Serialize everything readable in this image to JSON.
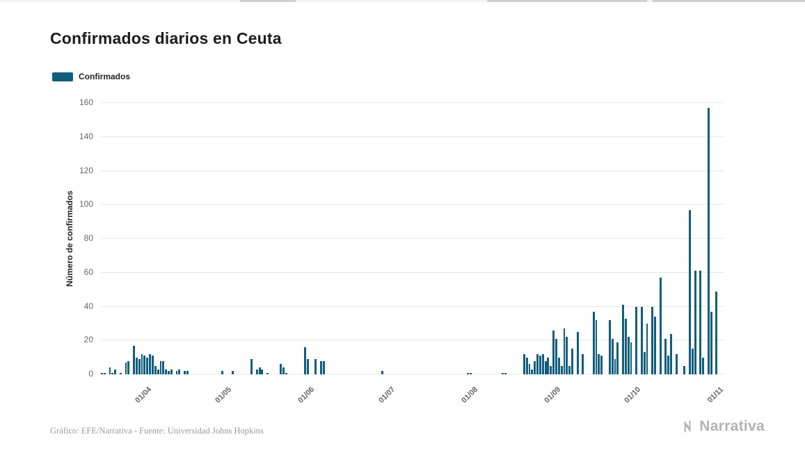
{
  "page": {
    "title": "Confirmados diarios en Ceuta",
    "credit": "Gráfico: EFE/Narrativa - Fuente: Universidad Johns Hopkins",
    "brand": "Narrativa"
  },
  "legend": {
    "label": "Confirmados",
    "color": "#0f5d7d"
  },
  "chart_data": {
    "type": "bar",
    "title": "Confirmados diarios en Ceuta",
    "series_name": "Confirmados",
    "xlabel": "",
    "ylabel": "Número de confirmados",
    "ylim": [
      0,
      160
    ],
    "y_ticks": [
      0,
      20,
      40,
      60,
      80,
      100,
      120,
      140,
      160
    ],
    "grid": true,
    "legend_position": "top-left",
    "bar_color": "#0f5d7d",
    "x_unit": "day",
    "start_date": "14/03",
    "x_ticks": [
      {
        "label": "01/04",
        "index": 18
      },
      {
        "label": "01/05",
        "index": 48
      },
      {
        "label": "01/06",
        "index": 79
      },
      {
        "label": "01/07",
        "index": 109
      },
      {
        "label": "01/08",
        "index": 140
      },
      {
        "label": "01/09",
        "index": 171
      },
      {
        "label": "01/10",
        "index": 201
      },
      {
        "label": "01/11",
        "index": 232
      }
    ],
    "values": [
      1,
      1,
      0,
      4,
      1,
      3,
      0,
      1,
      0,
      7,
      8,
      0,
      17,
      10,
      9,
      12,
      11,
      10,
      12,
      11,
      5,
      3,
      8,
      8,
      3,
      2,
      3,
      0,
      2,
      3,
      0,
      2,
      2,
      0,
      0,
      0,
      0,
      0,
      0,
      0,
      0,
      0,
      0,
      0,
      0,
      2,
      0,
      0,
      0,
      2,
      0,
      0,
      0,
      0,
      0,
      0,
      9,
      0,
      3,
      4,
      3,
      0,
      1,
      0,
      0,
      0,
      0,
      6,
      4,
      1,
      0,
      0,
      0,
      0,
      0,
      0,
      16,
      9,
      0,
      0,
      9,
      0,
      8,
      8,
      0,
      0,
      0,
      0,
      0,
      0,
      0,
      0,
      0,
      0,
      0,
      0,
      0,
      0,
      0,
      0,
      0,
      0,
      0,
      0,
      0,
      2,
      0,
      0,
      0,
      0,
      0,
      0,
      0,
      0,
      0,
      0,
      0,
      0,
      0,
      0,
      0,
      0,
      0,
      0,
      0,
      0,
      0,
      0,
      0,
      0,
      0,
      0,
      0,
      0,
      0,
      0,
      0,
      1,
      1,
      0,
      0,
      0,
      0,
      0,
      0,
      0,
      0,
      0,
      0,
      0,
      1,
      1,
      0,
      0,
      0,
      0,
      0,
      0,
      12,
      10,
      6,
      3,
      8,
      12,
      11,
      12,
      8,
      10,
      5,
      26,
      21,
      10,
      5,
      27,
      22,
      5,
      15,
      0,
      25,
      0,
      12,
      0,
      0,
      0,
      37,
      32,
      12,
      11,
      0,
      0,
      32,
      21,
      9,
      19,
      0,
      41,
      33,
      22,
      19,
      0,
      40,
      0,
      40,
      13,
      30,
      0,
      40,
      34,
      0,
      57,
      0,
      21,
      11,
      24,
      0,
      12,
      0,
      0,
      5,
      0,
      97,
      15,
      61,
      0,
      61,
      10,
      0,
      157,
      37,
      0,
      49,
      0,
      0
    ]
  }
}
